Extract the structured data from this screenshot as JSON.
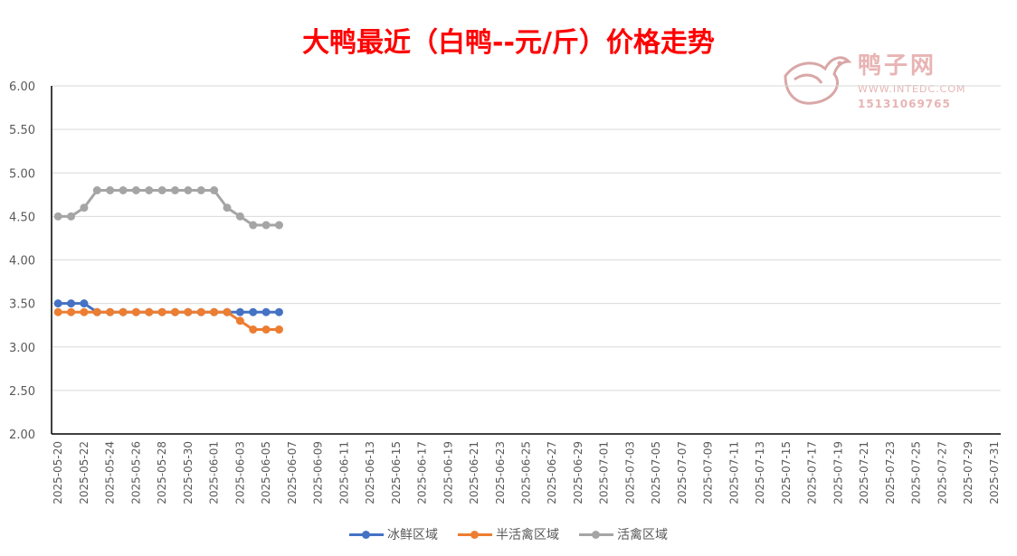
{
  "chart_data": {
    "type": "line",
    "title": "大鸭最近（白鸭--元/斤）价格走势",
    "ylim": [
      2.0,
      6.0
    ],
    "yticks": [
      "6.00",
      "5.50",
      "5.00",
      "4.50",
      "4.00",
      "3.50",
      "3.00",
      "2.50",
      "2.00"
    ],
    "ytick_values": [
      6.0,
      5.5,
      5.0,
      4.5,
      4.0,
      3.5,
      3.0,
      2.5,
      2.0
    ],
    "x_start": "2025-05-20",
    "x_end": "2025-07-31",
    "xticks": [
      "2025-05-20",
      "2025-05-22",
      "2025-05-24",
      "2025-05-26",
      "2025-05-28",
      "2025-05-30",
      "2025-06-01",
      "2025-06-03",
      "2025-06-05",
      "2025-06-07",
      "2025-06-09",
      "2025-06-11",
      "2025-06-13",
      "2025-06-15",
      "2025-06-17",
      "2025-06-19",
      "2025-06-21",
      "2025-06-23",
      "2025-06-25",
      "2025-06-27",
      "2025-06-29",
      "2025-07-01",
      "2025-07-03",
      "2025-07-05",
      "2025-07-07",
      "2025-07-09",
      "2025-07-11",
      "2025-07-13",
      "2025-07-15",
      "2025-07-17",
      "2025-07-19",
      "2025-07-21",
      "2025-07-23",
      "2025-07-25",
      "2025-07-27",
      "2025-07-29",
      "2025-07-31"
    ],
    "x": [
      "2025-05-20",
      "2025-05-21",
      "2025-05-22",
      "2025-05-23",
      "2025-05-24",
      "2025-05-25",
      "2025-05-26",
      "2025-05-27",
      "2025-05-28",
      "2025-05-29",
      "2025-05-30",
      "2025-05-31",
      "2025-06-01",
      "2025-06-02",
      "2025-06-03",
      "2025-06-04",
      "2025-06-05",
      "2025-06-06"
    ],
    "series": [
      {
        "name": "冰鲜区域",
        "color": "#4472c4",
        "values": [
          3.5,
          3.5,
          3.5,
          3.4,
          3.4,
          3.4,
          3.4,
          3.4,
          3.4,
          3.4,
          3.4,
          3.4,
          3.4,
          3.4,
          3.4,
          3.4,
          3.4,
          3.4
        ]
      },
      {
        "name": "半活禽区域",
        "color": "#ed7d31",
        "values": [
          3.4,
          3.4,
          3.4,
          3.4,
          3.4,
          3.4,
          3.4,
          3.4,
          3.4,
          3.4,
          3.4,
          3.4,
          3.4,
          3.4,
          3.3,
          3.2,
          3.2,
          3.2
        ]
      },
      {
        "name": "活禽区域",
        "color": "#a5a5a5",
        "values": [
          4.5,
          4.5,
          4.6,
          4.8,
          4.8,
          4.8,
          4.8,
          4.8,
          4.8,
          4.8,
          4.8,
          4.8,
          4.8,
          4.6,
          4.5,
          4.4,
          4.4,
          4.4
        ]
      }
    ],
    "grid": true,
    "legend_position": "bottom"
  },
  "watermark": {
    "name": "鸭子网",
    "url": "WWW.INTEDC.COM",
    "phone": "15131069765"
  }
}
